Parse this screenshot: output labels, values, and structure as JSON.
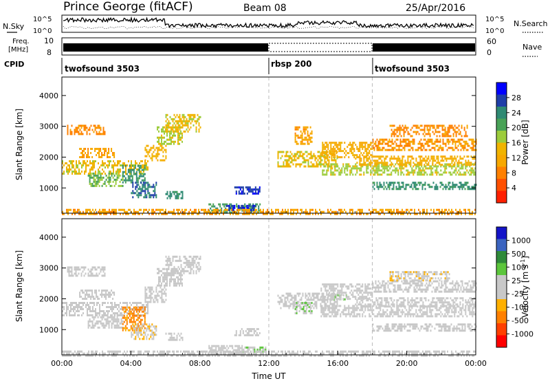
{
  "header": {
    "radar": "Prince George (fitACF)",
    "beam": "Beam 08",
    "date": "25/Apr/2016"
  },
  "top_panels": {
    "nsky_label": "N.Sky",
    "nsearch_label": "N.Search",
    "noise_ticks": [
      "10^5",
      "10^0"
    ],
    "freq_label_1": "Freq.",
    "freq_label_2": "[MHz]",
    "freq_ticks": [
      "10",
      "8"
    ],
    "nave_label": "Nave",
    "nave_ticks": [
      "60",
      "0"
    ],
    "cpid_label": "CPID",
    "cpid_segments": [
      {
        "name": "twofsound 3503",
        "start_hour": 0
      },
      {
        "name": "rbsp 200",
        "start_hour": 12
      },
      {
        "name": "twofsound 3503",
        "start_hour": 18
      }
    ]
  },
  "colors": {
    "power": [
      "#0000ff",
      "#1f3fa8",
      "#2f8a73",
      "#49a257",
      "#9ccc3c",
      "#f0b400",
      "#f7a800",
      "#ff8000",
      "#ff5000",
      "#ff2000"
    ],
    "velocity": [
      "#1414c8",
      "#3b64c0",
      "#2f8a3a",
      "#5cc63c",
      "#c8c8c8",
      "#c8c8c8",
      "#ffb000",
      "#ff8000",
      "#ff4000",
      "#ff0000"
    ]
  },
  "chart_data": [
    {
      "type": "heatmap",
      "title": "Power",
      "xlabel": "",
      "ylabel": "Slant Range [km]",
      "xlim": [
        0,
        24
      ],
      "ylim": [
        180,
        4600
      ],
      "y_ticks": [
        "1000",
        "2000",
        "3000",
        "4000"
      ],
      "colorbar_label": "Power [dB]",
      "colorbar_ticks": [
        "4",
        "8",
        "12",
        "16",
        "20",
        "24",
        "28"
      ],
      "colorbar_range": [
        0,
        30
      ],
      "regions": [
        {
          "t": [
            0.0,
            5.0
          ],
          "r": [
            1450,
            1900
          ],
          "value": 14
        },
        {
          "t": [
            1.0,
            3.0
          ],
          "r": [
            2000,
            2300
          ],
          "value": 10
        },
        {
          "t": [
            0.3,
            2.5
          ],
          "r": [
            2750,
            3050
          ],
          "value": 8
        },
        {
          "t": [
            1.5,
            3.5
          ],
          "r": [
            1050,
            1500
          ],
          "value": 18
        },
        {
          "t": [
            3.5,
            4.8
          ],
          "r": [
            1200,
            1750
          ],
          "value": 22
        },
        {
          "t": [
            4.8,
            6.0
          ],
          "r": [
            1900,
            2400
          ],
          "value": 12
        },
        {
          "t": [
            5.5,
            7.0
          ],
          "r": [
            2400,
            3000
          ],
          "value": 16
        },
        {
          "t": [
            6.0,
            8.0
          ],
          "r": [
            2800,
            3400
          ],
          "value": 14
        },
        {
          "t": [
            4.0,
            5.5
          ],
          "r": [
            700,
            1200
          ],
          "value": 24
        },
        {
          "t": [
            6.0,
            7.0
          ],
          "r": [
            650,
            900
          ],
          "value": 22
        },
        {
          "t": [
            10.0,
            11.5
          ],
          "r": [
            800,
            1050
          ],
          "value": 26
        },
        {
          "t": [
            8.5,
            11.5
          ],
          "r": [
            200,
            500
          ],
          "value": 20
        },
        {
          "t": [
            9.5,
            11.2
          ],
          "r": [
            300,
            450
          ],
          "value": 27
        },
        {
          "t": [
            12.5,
            16.0
          ],
          "r": [
            1700,
            2200
          ],
          "value": 14
        },
        {
          "t": [
            13.5,
            14.5
          ],
          "r": [
            2400,
            3000
          ],
          "value": 10
        },
        {
          "t": [
            15.0,
            18.0
          ],
          "r": [
            2000,
            2500
          ],
          "value": 11
        },
        {
          "t": [
            15.0,
            24.0
          ],
          "r": [
            1400,
            1800
          ],
          "value": 16
        },
        {
          "t": [
            18.0,
            24.0
          ],
          "r": [
            950,
            1200
          ],
          "value": 22
        },
        {
          "t": [
            17.0,
            24.0
          ],
          "r": [
            1750,
            2050
          ],
          "value": 12
        },
        {
          "t": [
            18.0,
            24.0
          ],
          "r": [
            2200,
            2600
          ],
          "value": 9
        },
        {
          "t": [
            19.0,
            23.5
          ],
          "r": [
            2650,
            3050
          ],
          "value": 8
        },
        {
          "t": [
            0.0,
            24.0
          ],
          "r": [
            180,
            320
          ],
          "value": 10
        }
      ]
    },
    {
      "type": "heatmap",
      "title": "Velocity",
      "xlabel": "Time UT",
      "ylabel": "Slant Range [km]",
      "xlim": [
        0,
        24
      ],
      "ylim": [
        180,
        4600
      ],
      "x_ticks": [
        "00:00",
        "04:00",
        "08:00",
        "12:00",
        "16:00",
        "20:00",
        "00:00"
      ],
      "y_ticks": [
        "1000",
        "2000",
        "3000",
        "4000"
      ],
      "colorbar_label": "Velocity [m s^-1]",
      "colorbar_ticks": [
        "1000",
        "500",
        "100",
        "25",
        "-25",
        "-100",
        "-500",
        "-1000"
      ],
      "colorbar_range": [
        -1200,
        1200
      ],
      "regions": [
        {
          "t": [
            0.0,
            5.0
          ],
          "r": [
            1450,
            1900
          ],
          "value": 0
        },
        {
          "t": [
            1.0,
            3.0
          ],
          "r": [
            2000,
            2300
          ],
          "value": 0
        },
        {
          "t": [
            0.3,
            2.5
          ],
          "r": [
            2750,
            3050
          ],
          "value": 0
        },
        {
          "t": [
            1.5,
            3.5
          ],
          "r": [
            1050,
            1500
          ],
          "value": 0
        },
        {
          "t": [
            3.5,
            4.8
          ],
          "r": [
            950,
            1750
          ],
          "value": -550
        },
        {
          "t": [
            4.8,
            6.0
          ],
          "r": [
            1900,
            2400
          ],
          "value": 0
        },
        {
          "t": [
            5.5,
            7.0
          ],
          "r": [
            2400,
            3000
          ],
          "value": 0
        },
        {
          "t": [
            6.0,
            8.0
          ],
          "r": [
            2800,
            3400
          ],
          "value": 0
        },
        {
          "t": [
            4.0,
            5.5
          ],
          "r": [
            700,
            1200
          ],
          "value": -200
        },
        {
          "t": [
            6.0,
            7.0
          ],
          "r": [
            650,
            900
          ],
          "value": 0
        },
        {
          "t": [
            10.0,
            11.5
          ],
          "r": [
            800,
            1050
          ],
          "value": 0
        },
        {
          "t": [
            10.5,
            11.8
          ],
          "r": [
            250,
            450
          ],
          "value": 200
        },
        {
          "t": [
            8.5,
            10.5
          ],
          "r": [
            200,
            500
          ],
          "value": 0
        },
        {
          "t": [
            12.5,
            16.0
          ],
          "r": [
            1700,
            2200
          ],
          "value": 0
        },
        {
          "t": [
            13.5,
            14.5
          ],
          "r": [
            1500,
            1900
          ],
          "value": 200
        },
        {
          "t": [
            15.5,
            16.5
          ],
          "r": [
            1950,
            2150
          ],
          "value": 200
        },
        {
          "t": [
            15.0,
            18.0
          ],
          "r": [
            2000,
            2500
          ],
          "value": 0
        },
        {
          "t": [
            15.0,
            24.0
          ],
          "r": [
            1400,
            1800
          ],
          "value": 0
        },
        {
          "t": [
            18.0,
            24.0
          ],
          "r": [
            950,
            1200
          ],
          "value": 0
        },
        {
          "t": [
            17.0,
            24.0
          ],
          "r": [
            1750,
            2050
          ],
          "value": 0
        },
        {
          "t": [
            18.0,
            24.0
          ],
          "r": [
            2200,
            2600
          ],
          "value": 0
        },
        {
          "t": [
            19.0,
            22.5
          ],
          "r": [
            2600,
            2900
          ],
          "value": -150
        },
        {
          "t": [
            0.0,
            24.0
          ],
          "r": [
            180,
            320
          ],
          "value": 0
        }
      ]
    }
  ]
}
